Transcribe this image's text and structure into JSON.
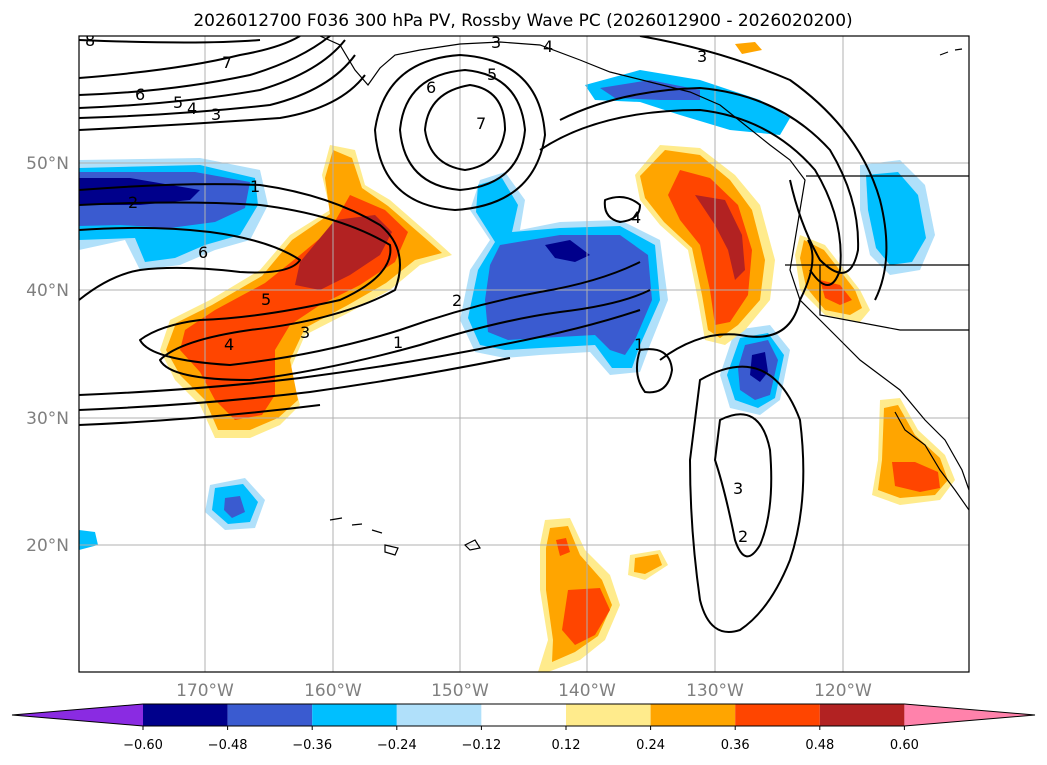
{
  "title": "2026012700 F036 300 hPa PV, Rossby Wave PC (2026012900 - 2026020200)",
  "lat_labels": [
    "50°N",
    "40°N",
    "30°N",
    "20°N"
  ],
  "lon_labels": [
    "170°W",
    "160°W",
    "150°W",
    "140°W",
    "130°W",
    "120°W"
  ],
  "colorbar": {
    "ticks": [
      "−0.60",
      "−0.48",
      "−0.36",
      "−0.24",
      "−0.12",
      "0.12",
      "0.24",
      "0.36",
      "0.48",
      "0.60"
    ],
    "colors": [
      "#8a2be2",
      "#00008b",
      "#3a5bd0",
      "#00bfff",
      "#b0e0fa",
      "#ffffff",
      "#ffeb8c",
      "#ffa500",
      "#ff4500",
      "#b22222",
      "#ff82ab"
    ]
  },
  "contour_labels": [
    "8",
    "7",
    "6",
    "5",
    "4",
    "3",
    "3",
    "4",
    "5",
    "6",
    "7",
    "1",
    "2",
    "6",
    "5",
    "4",
    "3",
    "2",
    "1",
    "4",
    "1",
    "3",
    "2",
    "3"
  ],
  "colors": {
    "pos1": "#ffeb8c",
    "pos2": "#ffa500",
    "pos3": "#ff4500",
    "pos4": "#b22222",
    "neg1": "#b0e0fa",
    "neg2": "#00bfff",
    "neg3": "#3a5bd0",
    "neg4": "#00008b"
  }
}
